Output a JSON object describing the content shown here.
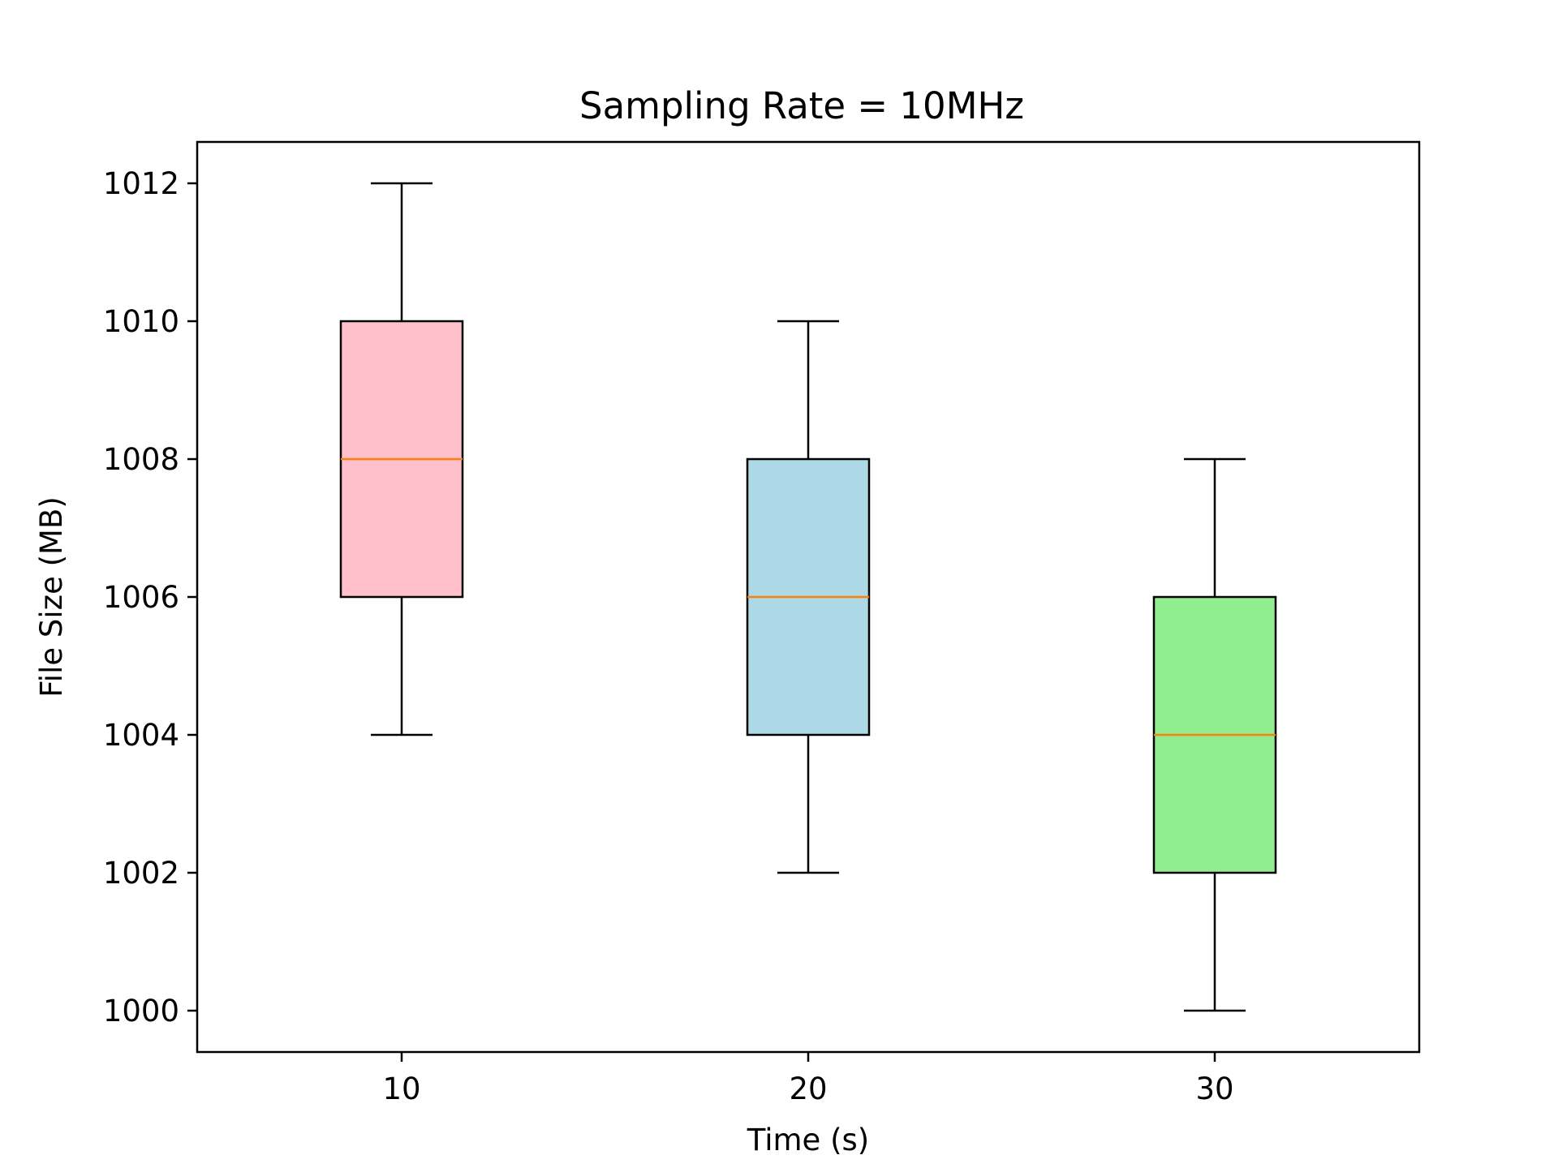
{
  "chart_data": {
    "type": "box",
    "title": "Sampling Rate = 10MHz",
    "xlabel": "Time (s)",
    "ylabel": "File Size (MB)",
    "categories": [
      "10",
      "20",
      "30"
    ],
    "ylim": [
      999.4,
      1012.6
    ],
    "yticks": [
      1000,
      1002,
      1004,
      1006,
      1008,
      1010,
      1012
    ],
    "ytick_labels": [
      "1000",
      "1002",
      "1004",
      "1006",
      "1008",
      "1010",
      "1012"
    ],
    "boxes": [
      {
        "label": "10",
        "whisker_low": 1004,
        "q1": 1006,
        "median": 1008,
        "q3": 1010,
        "whisker_high": 1012,
        "color": "#ffc0cb"
      },
      {
        "label": "20",
        "whisker_low": 1002,
        "q1": 1004,
        "median": 1006,
        "q3": 1008,
        "whisker_high": 1010,
        "color": "#add8e6"
      },
      {
        "label": "30",
        "whisker_low": 1000,
        "q1": 1002,
        "median": 1004,
        "q3": 1006,
        "whisker_high": 1008,
        "color": "#90ee90"
      }
    ],
    "median_color": "#ff7f0e",
    "grid": false,
    "legend": "none"
  }
}
